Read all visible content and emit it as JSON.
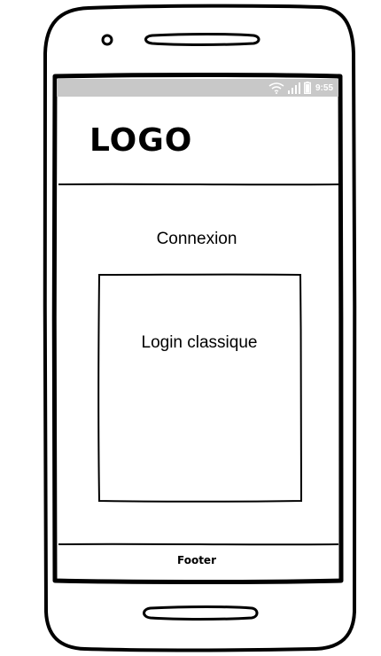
{
  "status_bar": {
    "time": "9:55",
    "icons": [
      "wifi-icon",
      "signal-icon",
      "battery-icon"
    ]
  },
  "header": {
    "logo": "LOGO"
  },
  "main": {
    "title": "Connexion",
    "login_box_label": "Login classique"
  },
  "footer": {
    "label": "Footer"
  },
  "colors": {
    "status_bar": "#c8c8c8",
    "stroke": "#000000",
    "background": "#ffffff"
  }
}
